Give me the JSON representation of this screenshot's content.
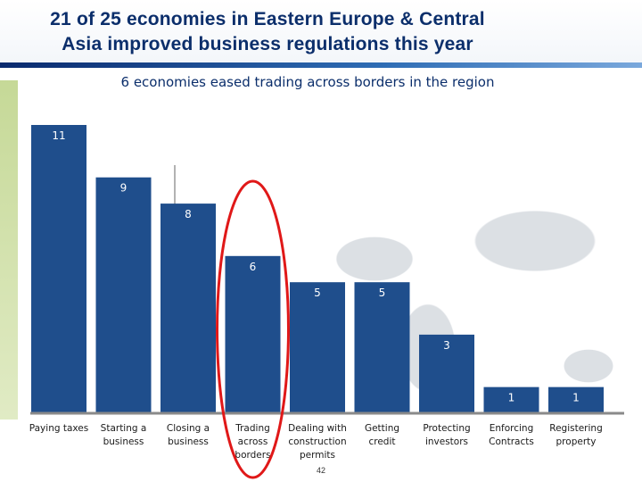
{
  "slide": {
    "title_line1": "21 of 25 economies in Eastern Europe & Central",
    "title_line2": "Asia improved business regulations this year",
    "subtitle": "6 economies eased trading across borders in the region",
    "page_number": "42"
  },
  "colors": {
    "bar": "#1f4e8c",
    "bar_label": "#ffffff",
    "highlight": "#e01818",
    "title": "#0b2e6b"
  },
  "chart_data": {
    "type": "bar",
    "categories": [
      [
        "Paying taxes"
      ],
      [
        "Starting a",
        "business"
      ],
      [
        "Closing a",
        "business"
      ],
      [
        "Trading",
        "across",
        "borders"
      ],
      [
        "Dealing with",
        "construction",
        "permits"
      ],
      [
        "Getting",
        "credit"
      ],
      [
        "Protecting",
        "investors"
      ],
      [
        "Enforcing",
        "Contracts"
      ],
      [
        "Registering",
        "property"
      ]
    ],
    "values": [
      11,
      9,
      8,
      6,
      5,
      5,
      3,
      1,
      1
    ],
    "highlight_category": [
      "Trading",
      "across",
      "borders"
    ],
    "grid": false,
    "legend": "none"
  }
}
